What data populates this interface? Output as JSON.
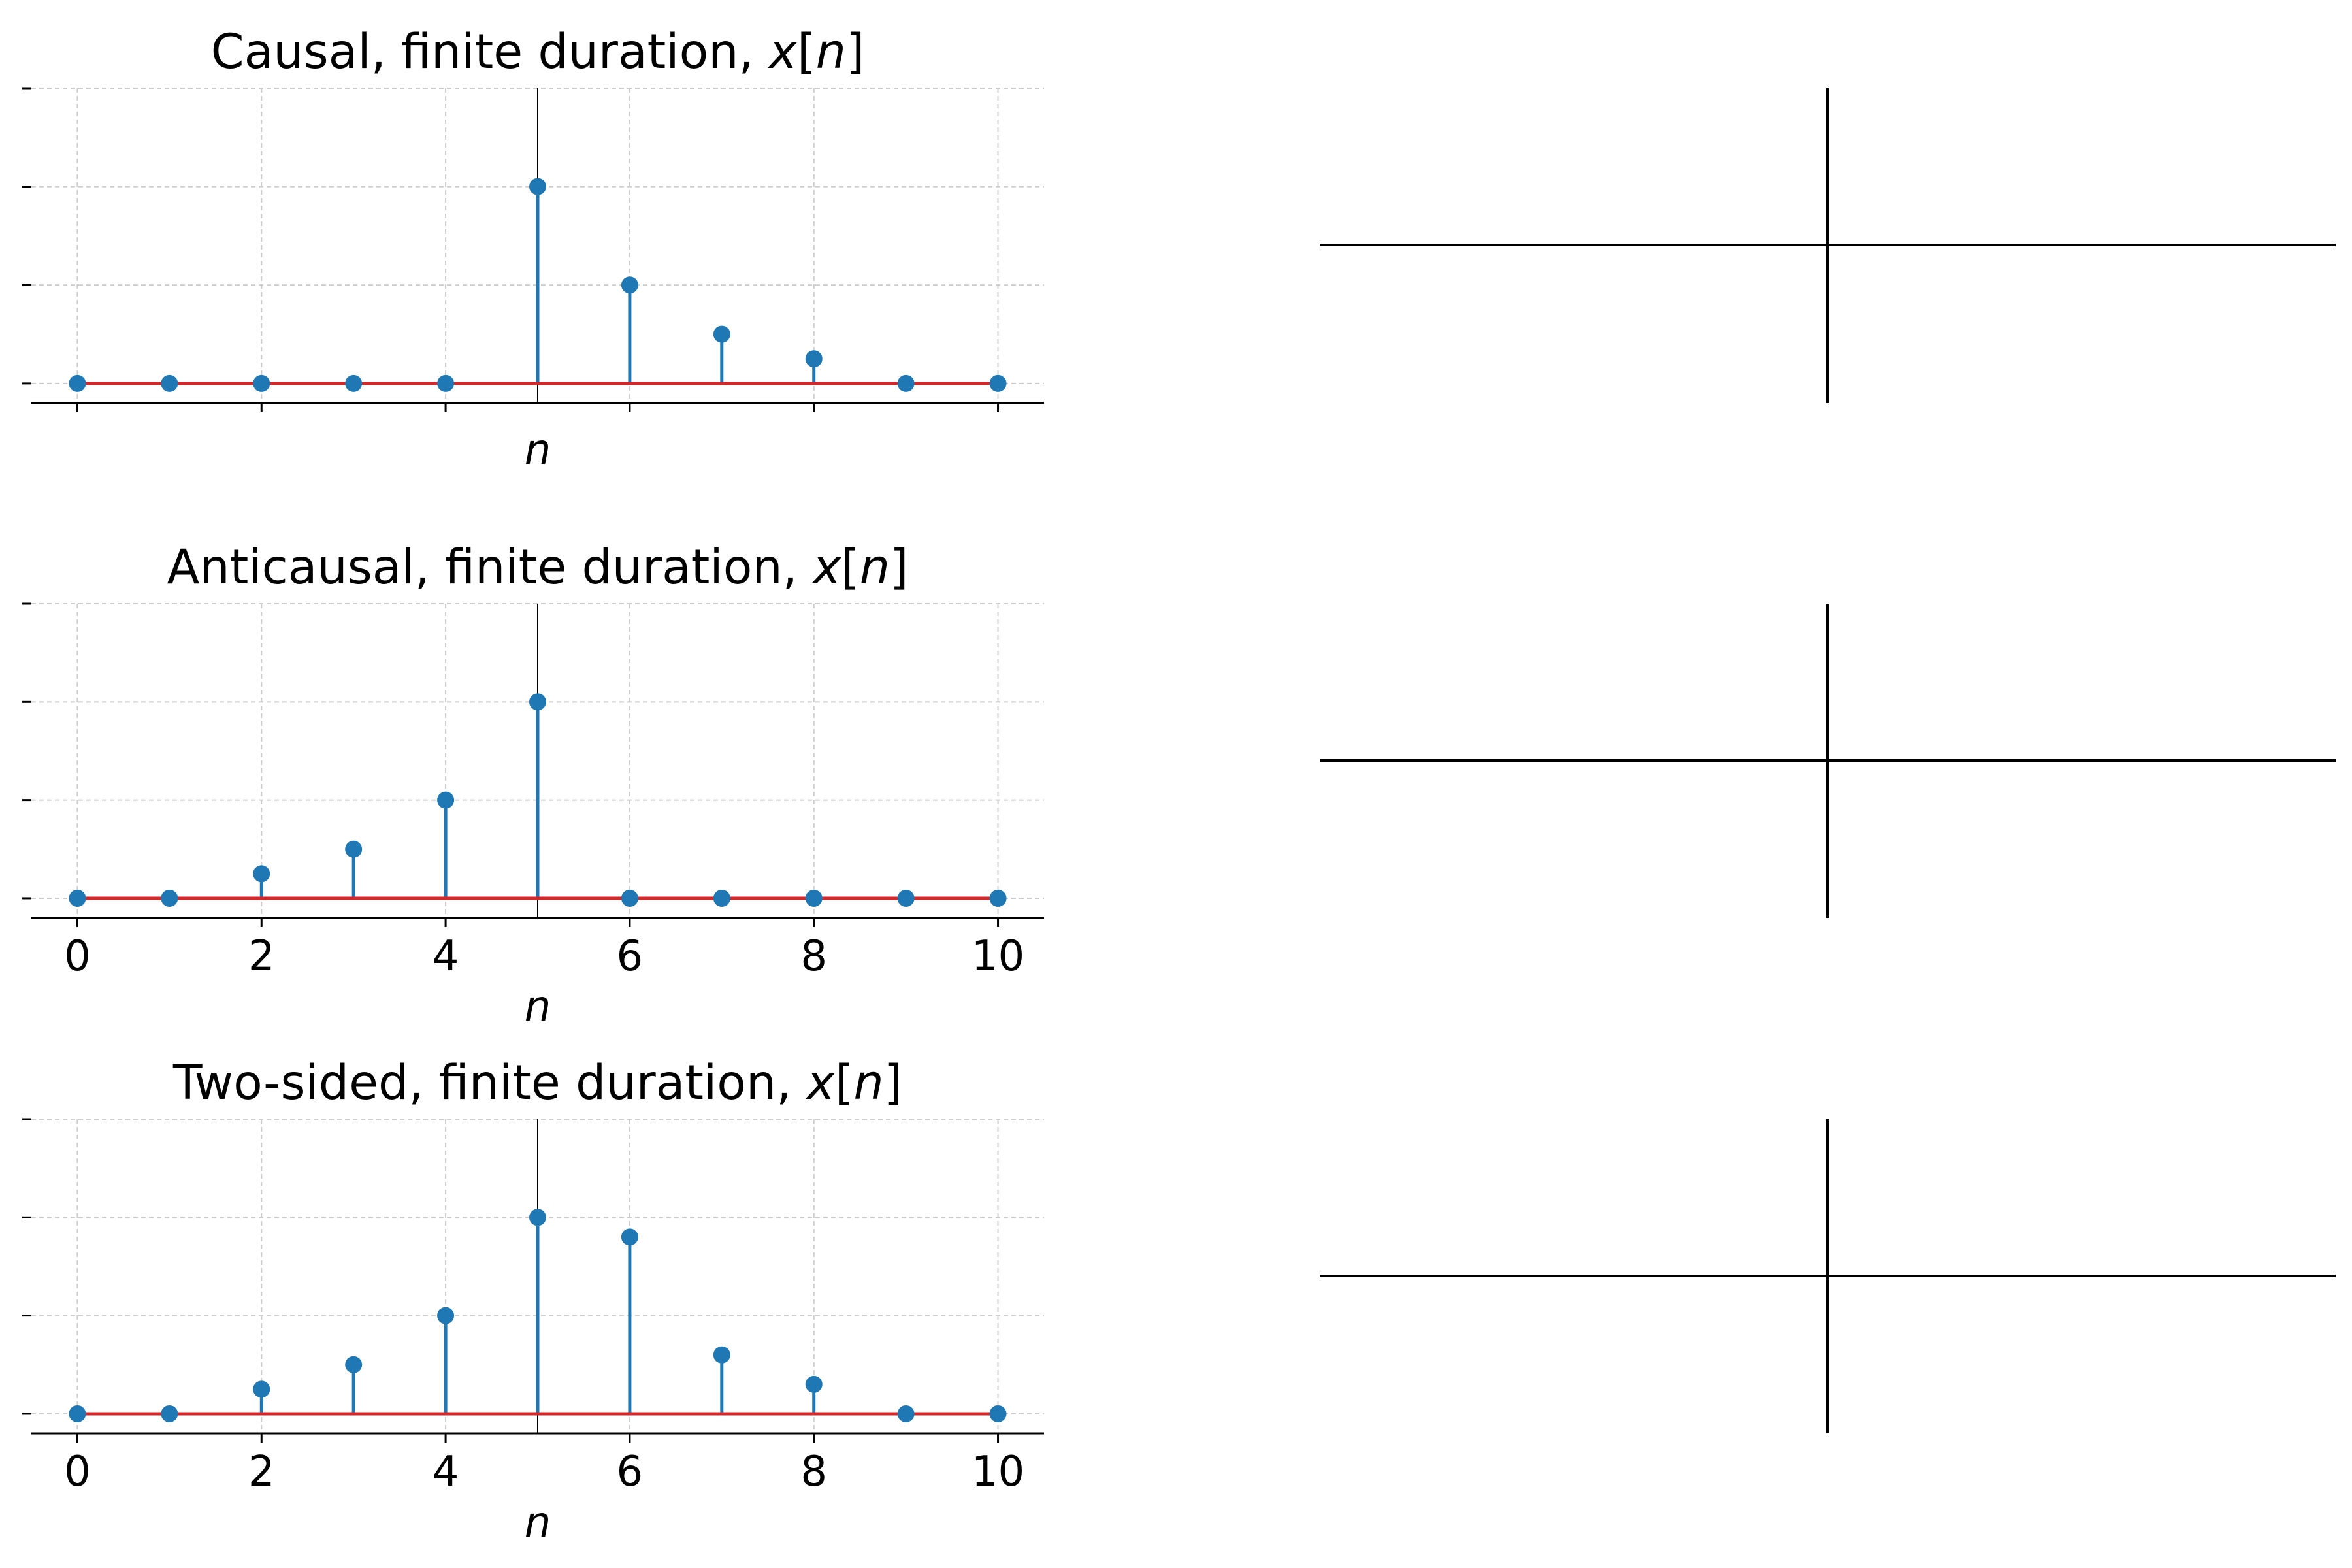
{
  "chart_data": [
    {
      "type": "stem",
      "title": {
        "main": "Causal, finite duration, ",
        "var": "x",
        "bracket_open": "[",
        "index": "n",
        "bracket_close": "]"
      },
      "xlabel": "n",
      "x": [
        0,
        1,
        2,
        3,
        4,
        5,
        6,
        7,
        8,
        9,
        10
      ],
      "values": [
        0,
        0,
        0,
        0,
        0,
        1,
        0.5,
        0.25,
        0.125,
        0,
        0
      ],
      "xlim": [
        -0.5,
        10.5
      ],
      "ylim": [
        -0.1,
        1.5
      ],
      "xticks": [
        0,
        2,
        4,
        6,
        8,
        10
      ],
      "xtick_labels_visible": false,
      "yticks": [
        0,
        0.5,
        1,
        1.5
      ],
      "ytick_labels_visible": false,
      "vline_x": 5,
      "grid": true,
      "colors": {
        "stem": "#1f77b4",
        "baseline": "#d62728",
        "vline": "#000000",
        "grid": "#cccccc"
      }
    },
    {
      "type": "stem",
      "title": {
        "main": "Anticausal, finite duration, ",
        "var": "x",
        "bracket_open": "[",
        "index": "n",
        "bracket_close": "]"
      },
      "xlabel": "n",
      "x": [
        0,
        1,
        2,
        3,
        4,
        5,
        6,
        7,
        8,
        9,
        10
      ],
      "values": [
        0,
        0,
        0.125,
        0.25,
        0.5,
        1,
        0,
        0,
        0,
        0,
        0
      ],
      "xlim": [
        -0.5,
        10.5
      ],
      "ylim": [
        -0.1,
        1.5
      ],
      "xticks": [
        0,
        2,
        4,
        6,
        8,
        10
      ],
      "xtick_labels_visible": true,
      "yticks": [
        0,
        0.5,
        1,
        1.5
      ],
      "ytick_labels_visible": false,
      "vline_x": 5,
      "grid": true,
      "colors": {
        "stem": "#1f77b4",
        "baseline": "#d62728",
        "vline": "#000000",
        "grid": "#cccccc"
      }
    },
    {
      "type": "stem",
      "title": {
        "main": "Two-sided, finite duration, ",
        "var": "x",
        "bracket_open": "[",
        "index": "n",
        "bracket_close": "]"
      },
      "xlabel": "n",
      "x": [
        0,
        1,
        2,
        3,
        4,
        5,
        6,
        7,
        8,
        9,
        10
      ],
      "values": [
        0,
        0,
        0.125,
        0.25,
        0.5,
        1,
        0.9,
        0.3,
        0.15,
        0,
        0
      ],
      "xlim": [
        -0.5,
        10.5
      ],
      "ylim": [
        -0.1,
        1.5
      ],
      "xticks": [
        0,
        2,
        4,
        6,
        8,
        10
      ],
      "xtick_labels_visible": true,
      "yticks": [
        0,
        0.5,
        1,
        1.5
      ],
      "ytick_labels_visible": false,
      "vline_x": 5,
      "grid": true,
      "colors": {
        "stem": "#1f77b4",
        "baseline": "#d62728",
        "vline": "#000000",
        "grid": "#cccccc"
      }
    }
  ],
  "right_panels": [
    {
      "type": "cross_axes",
      "color": "#000000"
    },
    {
      "type": "cross_axes",
      "color": "#000000"
    },
    {
      "type": "cross_axes",
      "color": "#000000"
    }
  ]
}
